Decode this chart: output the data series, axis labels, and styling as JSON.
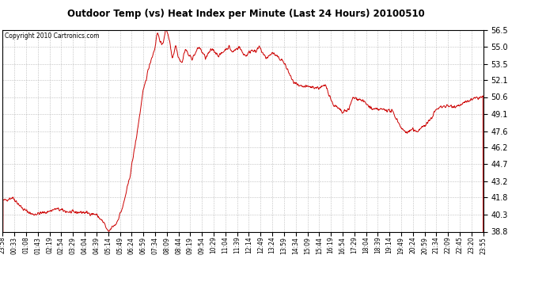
{
  "title": "Outdoor Temp (vs) Heat Index per Minute (Last 24 Hours) 20100510",
  "copyright": "Copyright 2010 Cartronics.com",
  "line_color": "#cc0000",
  "background_color": "#ffffff",
  "grid_color": "#b0b0b0",
  "yticks": [
    38.8,
    40.3,
    41.8,
    43.2,
    44.7,
    46.2,
    47.6,
    49.1,
    50.6,
    52.1,
    53.5,
    55.0,
    56.5
  ],
  "ylim": [
    38.8,
    56.5
  ],
  "xtick_labels": [
    "23:58",
    "00:33",
    "01:08",
    "01:43",
    "02:19",
    "02:54",
    "03:29",
    "04:04",
    "04:39",
    "05:14",
    "05:49",
    "06:24",
    "06:59",
    "07:34",
    "08:09",
    "08:44",
    "09:19",
    "09:54",
    "10:29",
    "11:04",
    "11:39",
    "12:14",
    "12:49",
    "13:24",
    "13:59",
    "14:34",
    "15:09",
    "15:44",
    "16:19",
    "16:54",
    "17:29",
    "18:04",
    "18:39",
    "19:14",
    "19:49",
    "20:24",
    "20:59",
    "21:34",
    "22:09",
    "22:45",
    "23:20",
    "23:55"
  ],
  "keypoints_x": [
    0,
    30,
    60,
    90,
    130,
    160,
    200,
    240,
    280,
    305,
    312,
    318,
    328,
    340,
    360,
    380,
    400,
    420,
    440,
    455,
    463,
    472,
    478,
    488,
    498,
    508,
    513,
    518,
    523,
    528,
    538,
    543,
    548,
    558,
    568,
    578,
    588,
    598,
    608,
    618,
    628,
    638,
    648,
    658,
    668,
    678,
    688,
    698,
    708,
    718,
    728,
    738,
    748,
    758,
    768,
    778,
    788,
    798,
    808,
    818,
    828,
    838,
    853,
    868,
    888,
    918,
    948,
    958,
    968,
    978,
    988,
    1008,
    1018,
    1028,
    1038,
    1048,
    1058,
    1068,
    1078,
    1088,
    1108,
    1128,
    1148,
    1168,
    1183,
    1198,
    1213,
    1228,
    1233,
    1238,
    1248,
    1258,
    1268,
    1278,
    1288,
    1298,
    1318,
    1338,
    1358,
    1378,
    1398,
    1418,
    1439
  ],
  "keypoints_y": [
    41.5,
    41.8,
    40.8,
    40.3,
    40.5,
    40.8,
    40.5,
    40.5,
    40.3,
    39.5,
    38.9,
    38.8,
    39.2,
    39.5,
    41.0,
    43.5,
    47.0,
    51.0,
    53.5,
    54.8,
    56.3,
    55.5,
    55.0,
    56.6,
    55.8,
    54.0,
    54.5,
    55.2,
    54.5,
    54.0,
    53.6,
    54.5,
    54.8,
    54.2,
    54.0,
    54.5,
    55.0,
    54.5,
    54.0,
    54.5,
    54.8,
    54.5,
    54.2,
    54.5,
    54.8,
    55.0,
    54.5,
    54.8,
    55.0,
    54.5,
    54.2,
    54.5,
    54.8,
    54.5,
    55.0,
    54.5,
    54.0,
    54.2,
    54.5,
    54.2,
    54.0,
    53.8,
    53.0,
    52.0,
    51.5,
    51.5,
    51.4,
    51.5,
    51.6,
    50.8,
    50.0,
    49.5,
    49.2,
    49.4,
    49.6,
    50.5,
    50.5,
    50.4,
    50.3,
    50.0,
    49.5,
    49.5,
    49.5,
    49.3,
    48.5,
    47.7,
    47.5,
    47.8,
    47.6,
    47.5,
    47.8,
    48.0,
    48.2,
    48.5,
    49.0,
    49.5,
    49.8,
    49.8,
    49.8,
    50.0,
    50.3,
    50.5,
    50.6
  ]
}
